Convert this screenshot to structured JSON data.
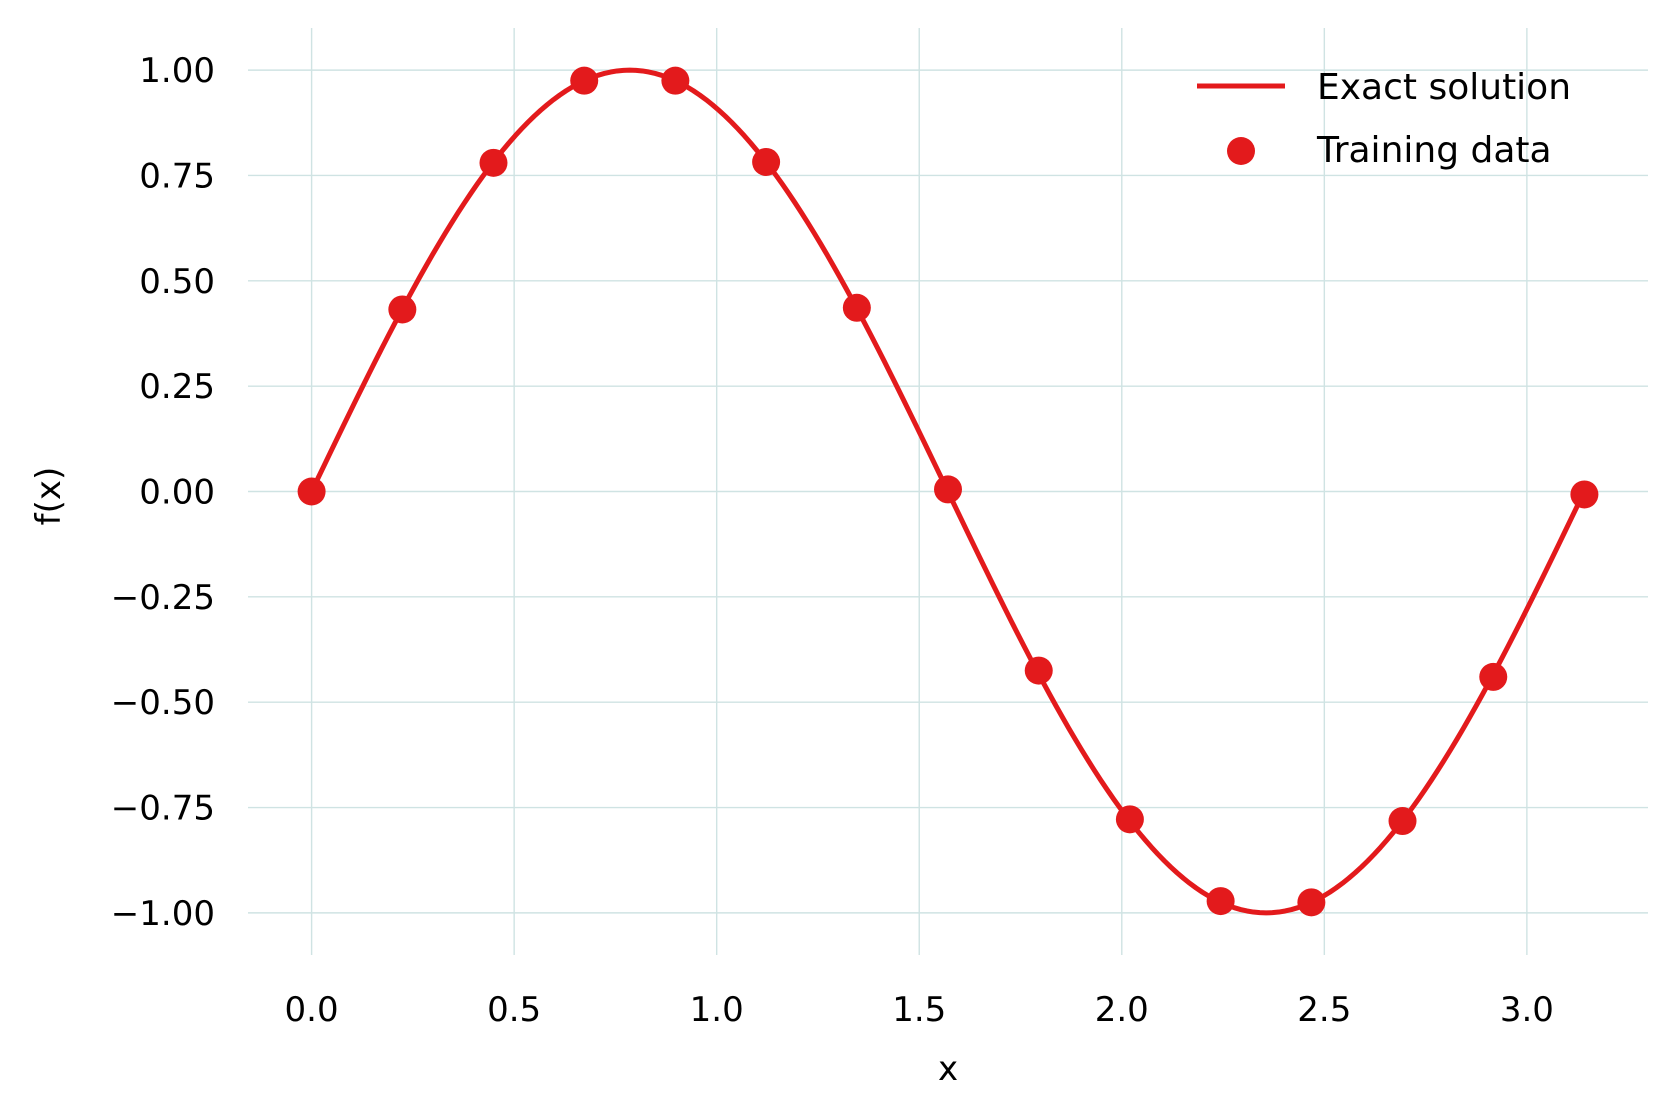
{
  "chart_data": {
    "type": "line",
    "title": "",
    "xlabel": "x",
    "ylabel": "f(x)",
    "xlim": [
      -0.157,
      3.299
    ],
    "ylim": [
      -1.1,
      1.1
    ],
    "x_ticks": [
      0.0,
      0.5,
      1.0,
      1.5,
      2.0,
      2.5,
      3.0
    ],
    "x_tick_labels": [
      "0.0",
      "0.5",
      "1.0",
      "1.5",
      "2.0",
      "2.5",
      "3.0"
    ],
    "y_ticks": [
      1.0,
      0.75,
      0.5,
      0.25,
      0.0,
      -0.25,
      -0.5,
      -0.75,
      -1.0
    ],
    "y_tick_labels": [
      "1.00",
      "0.75",
      "0.50",
      "0.25",
      "0.00",
      "−0.25",
      "−0.50",
      "−0.75",
      "−1.00"
    ],
    "grid": true,
    "legend_position": "top-right",
    "colors": {
      "series": "#e31a1c",
      "grid": "#cfe3e3",
      "text": "#000000"
    },
    "series": [
      {
        "name": "Exact solution",
        "type": "line",
        "function": "sin(2x)",
        "x_range": [
          0.0,
          3.1416
        ],
        "samples": 200
      },
      {
        "name": "Training data",
        "type": "scatter",
        "points": [
          [
            0.0,
            0.0
          ],
          [
            0.224,
            0.432
          ],
          [
            0.449,
            0.78
          ],
          [
            0.673,
            0.975
          ],
          [
            0.898,
            0.975
          ],
          [
            1.122,
            0.782
          ],
          [
            1.346,
            0.436
          ],
          [
            1.571,
            0.005
          ],
          [
            1.795,
            -0.425
          ],
          [
            2.02,
            -0.778
          ],
          [
            2.244,
            -0.972
          ],
          [
            2.468,
            -0.975
          ],
          [
            2.693,
            -0.782
          ],
          [
            2.917,
            -0.44
          ],
          [
            3.142,
            -0.007
          ]
        ]
      }
    ]
  }
}
